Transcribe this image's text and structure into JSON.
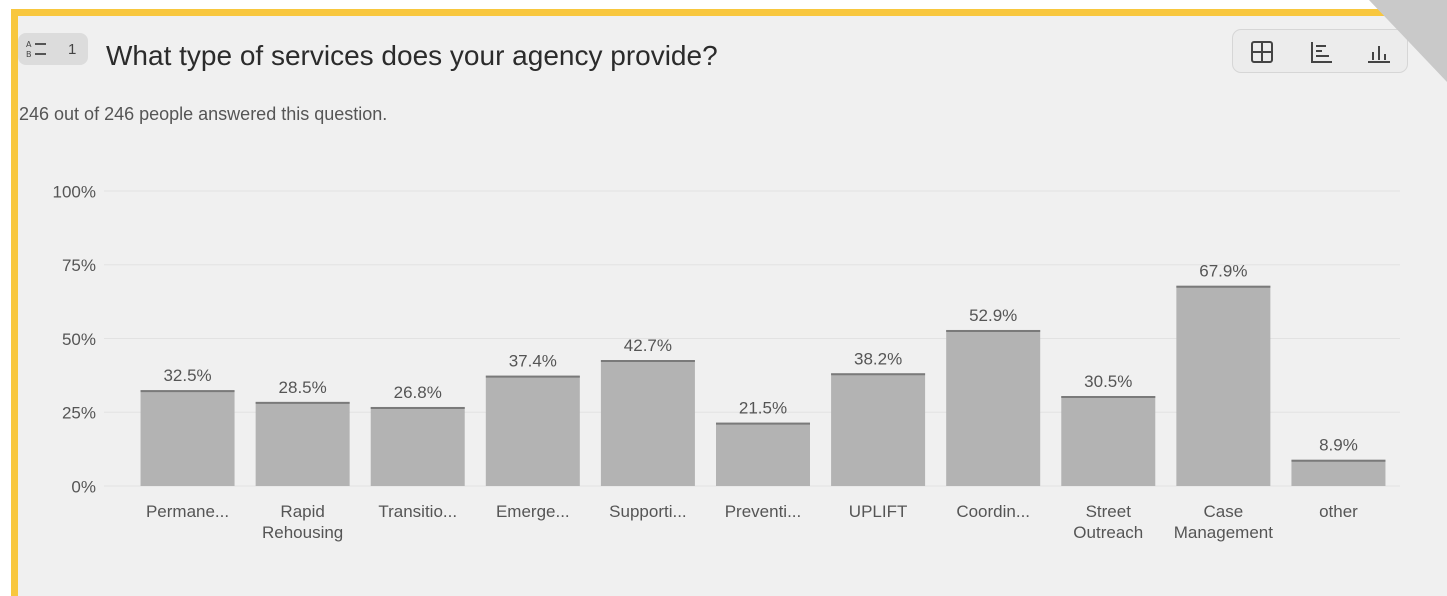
{
  "question": {
    "number": "1",
    "type_icon": "multiple-choice-icon",
    "title": "What type of services does your agency provide?",
    "subtitle": "246 out of 246 people answered this question."
  },
  "view_toggle": {
    "icons": [
      "table-view-icon",
      "horizontal-bar-view-icon",
      "vertical-bar-view-icon"
    ]
  },
  "colors": {
    "accent_border": "#f8c73e",
    "bar": "#b3b3b3",
    "background": "#f0f0f0"
  },
  "chart_data": {
    "type": "bar",
    "categories": [
      [
        "Permane..."
      ],
      [
        "Rapid",
        "Rehousing"
      ],
      [
        "Transitio..."
      ],
      [
        "Emerge..."
      ],
      [
        "Supporti..."
      ],
      [
        "Preventi..."
      ],
      [
        "UPLIFT"
      ],
      [
        "Coordin..."
      ],
      [
        "Street",
        "Outreach"
      ],
      [
        "Case",
        "Management"
      ],
      [
        "other"
      ]
    ],
    "values": [
      32.5,
      28.5,
      26.8,
      37.4,
      42.7,
      21.5,
      38.2,
      52.9,
      30.5,
      67.9,
      8.9
    ],
    "data_labels": [
      "32.5%",
      "28.5%",
      "26.8%",
      "37.4%",
      "42.7%",
      "21.5%",
      "38.2%",
      "52.9%",
      "30.5%",
      "67.9%",
      "8.9%"
    ],
    "yticks": [
      "0%",
      "25%",
      "50%",
      "75%",
      "100%"
    ],
    "ylim": [
      0,
      100
    ],
    "grid": true
  }
}
